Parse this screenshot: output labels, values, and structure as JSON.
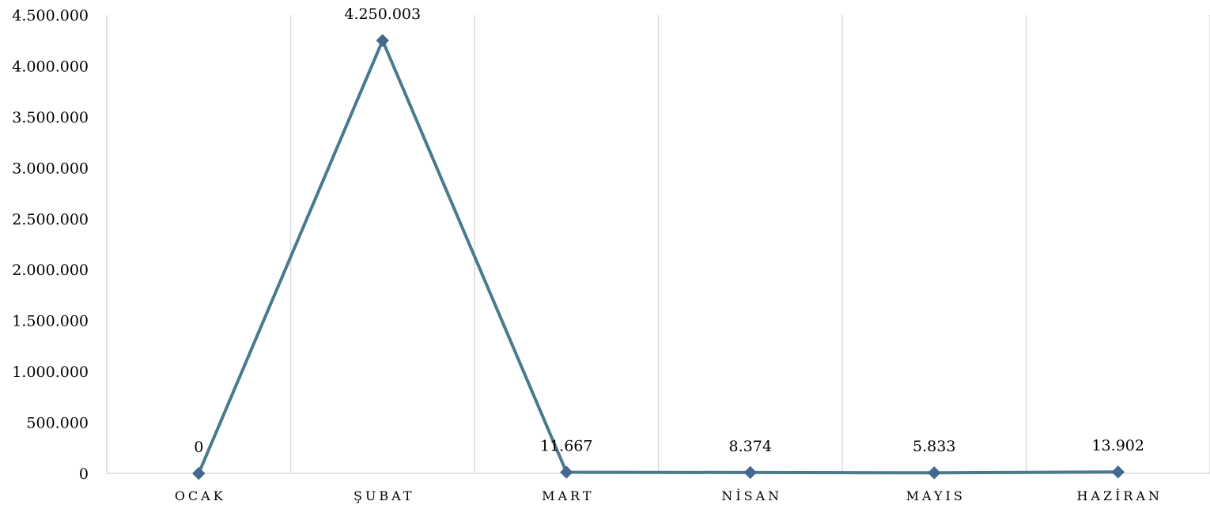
{
  "chart_data": {
    "type": "line",
    "categories": [
      "OCAK",
      "ŞUBAT",
      "MART",
      "NİSAN",
      "MAYIS",
      "HAZİRAN"
    ],
    "series": [
      {
        "values": [
          0,
          4250003,
          11667,
          8374,
          5833,
          13902
        ],
        "labels": [
          "0",
          "4.250.003",
          "11.667",
          "8.374",
          "5.833",
          "13.902"
        ],
        "color": "#4a7a8c",
        "marker_color": "#44698f",
        "marker": "diamond"
      }
    ],
    "y_ticks": [
      0,
      500000,
      1000000,
      1500000,
      2000000,
      2500000,
      3000000,
      3500000,
      4000000,
      4500000
    ],
    "y_tick_labels": [
      "0",
      "500.000",
      "1.000.000",
      "1.500.000",
      "2.000.000",
      "2.500.000",
      "3.000.000",
      "3.500.000",
      "4.000.000",
      "4.500.000"
    ],
    "ylim": [
      0,
      4500000
    ],
    "grid": "vertical",
    "grid_color": "#d9d9d9",
    "title": "",
    "xlabel": "",
    "ylabel": ""
  }
}
